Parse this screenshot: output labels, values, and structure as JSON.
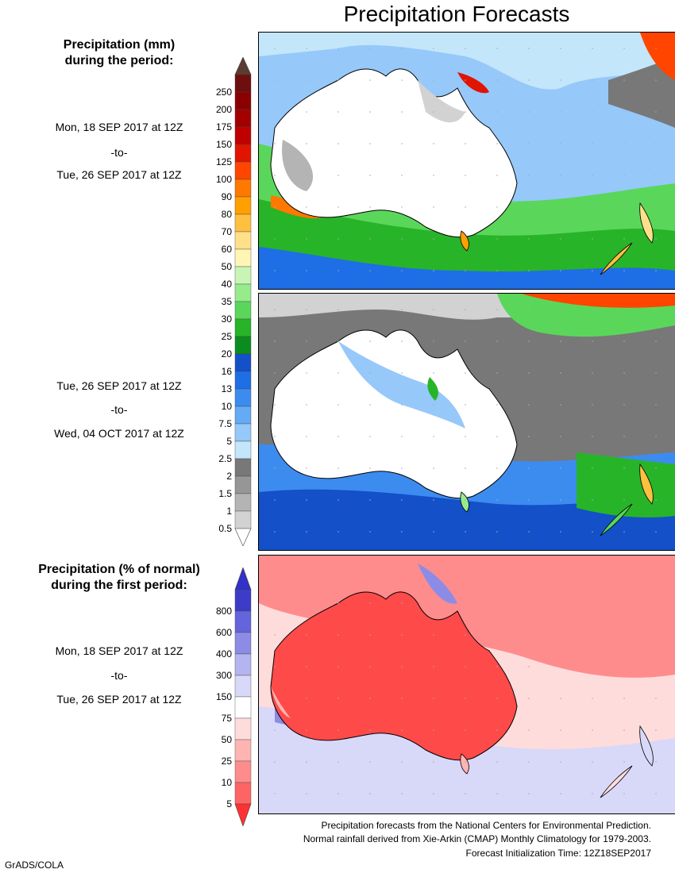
{
  "title": "Precipitation Forecasts",
  "panels": {
    "amount": {
      "heading_line1": "Precipitation (mm)",
      "heading_line2": "during the period:",
      "period1": {
        "start": "Mon, 18 SEP 2017 at 12Z",
        "sep": "-to-",
        "end": "Tue, 26 SEP 2017 at 12Z"
      },
      "period2": {
        "start": "Tue, 26 SEP 2017 at 12Z",
        "sep": "-to-",
        "end": "Wed, 04 OCT 2017 at 12Z"
      }
    },
    "percent": {
      "heading_line1": "Precipitation (% of normal)",
      "heading_line2": "during the first period:",
      "period": {
        "start": "Mon, 18 SEP 2017 at 12Z",
        "sep": "-to-",
        "end": "Tue, 26 SEP 2017 at 12Z"
      }
    }
  },
  "mm_scale": {
    "labels": [
      "250",
      "200",
      "175",
      "150",
      "125",
      "100",
      "90",
      "80",
      "70",
      "60",
      "50",
      "40",
      "35",
      "30",
      "25",
      "20",
      "16",
      "13",
      "10",
      "7.5",
      "5",
      "2.5",
      "2",
      "1.5",
      "1",
      "0.5"
    ],
    "colors": [
      "#6e0e0e",
      "#8b0000",
      "#a30000",
      "#c00000",
      "#e01400",
      "#ff4500",
      "#ff7800",
      "#ffa000",
      "#ffc040",
      "#ffe08a",
      "#fff5b4",
      "#c8f5b4",
      "#96eb8c",
      "#5ad75a",
      "#28b428",
      "#0a8c1e",
      "#1450c8",
      "#1e6ee6",
      "#3c8cf0",
      "#64aaf5",
      "#96c8fa",
      "#c4e6fa",
      "#787878",
      "#969696",
      "#b4b4b4",
      "#d2d2d2"
    ],
    "top_color": "#5a3c32",
    "bottom_color": "#ffffff"
  },
  "pct_scale": {
    "labels": [
      "800",
      "600",
      "400",
      "300",
      "150",
      "75",
      "50",
      "25",
      "10",
      "5"
    ],
    "colors": [
      "#3c3cc8",
      "#6464dc",
      "#8c8ce6",
      "#b4b4f0",
      "#d8d8f8",
      "#ffffff",
      "#ffdcdc",
      "#ffb4b4",
      "#ff8c8c",
      "#ff6464"
    ],
    "top_color": "#3232c8",
    "bottom_color": "#ff3232"
  },
  "footer": {
    "line1": "Precipitation forecasts from the National Centers for Environmental Prediction.",
    "line2": "Normal rainfall derived from Xie-Arkin (CMAP) Monthly Climatology for 1979-2003.",
    "line3": "Forecast Initialization Time: 12Z18SEP2017"
  },
  "credit": "GrADS/COLA"
}
